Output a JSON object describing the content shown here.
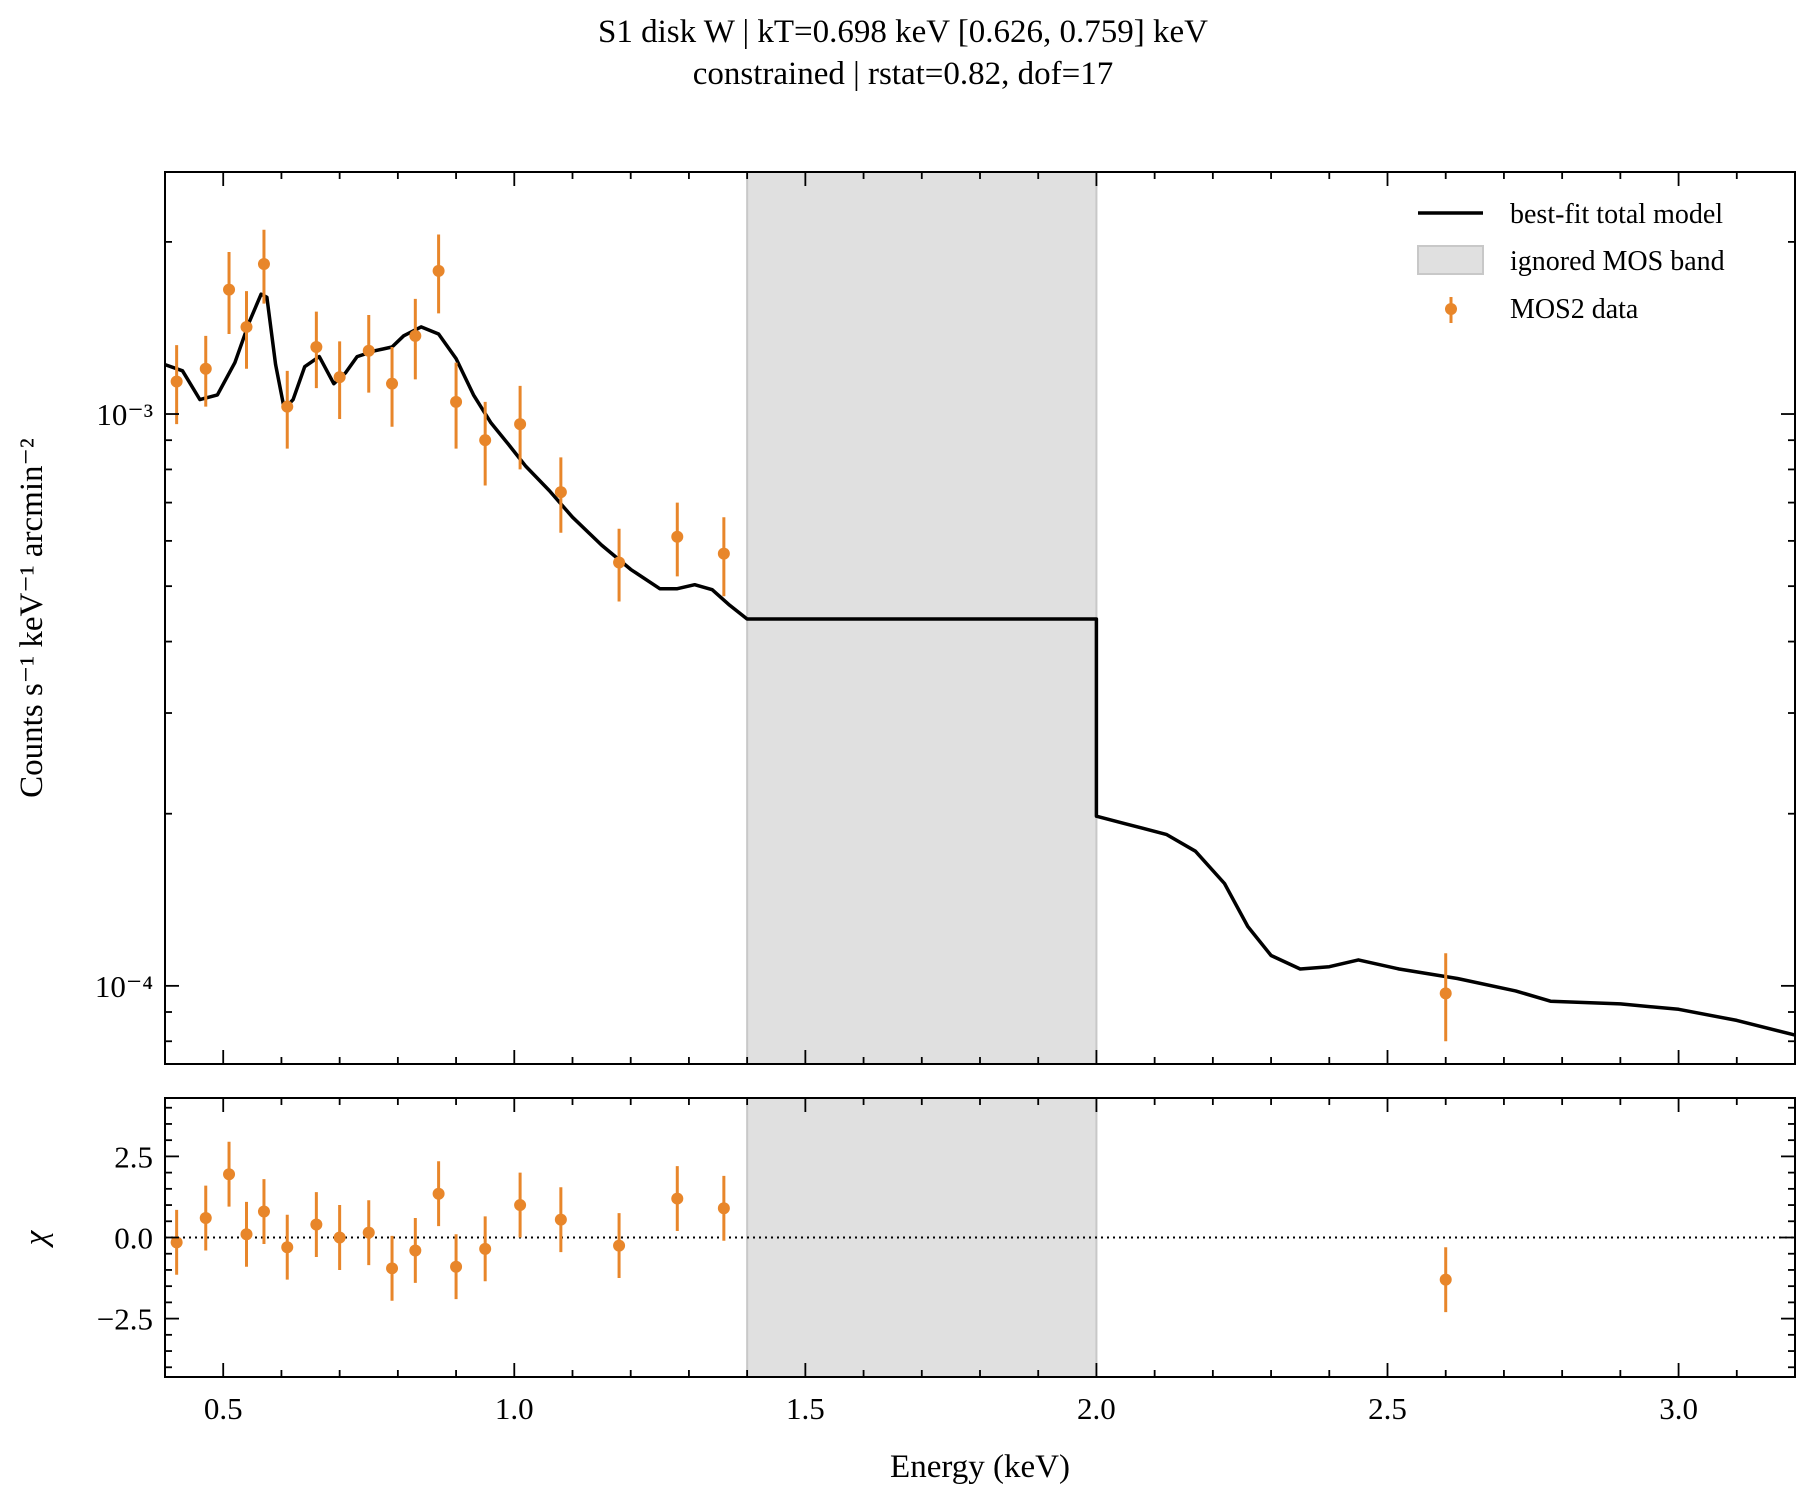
{
  "title": {
    "line1": "S1 disk W | kT=0.698 keV [0.626, 0.759] keV",
    "line2": "constrained | rstat=0.82, dof=17"
  },
  "chart_data": [
    {
      "type": "line",
      "panel": "spectrum",
      "xlabel": "Energy (keV)",
      "ylabel": "Counts s⁻¹ keV⁻¹ arcmin⁻²",
      "yscale": "log",
      "xlim": [
        0.4,
        3.2
      ],
      "ylim": [
        7.3e-05,
        0.00265
      ],
      "ytick_labels": [
        "10⁻³",
        "10⁻⁴"
      ],
      "grid": false,
      "legend_position": "top-right",
      "legend": [
        "best-fit total model",
        "ignored MOS band",
        "MOS2 data"
      ],
      "colors": {
        "model": "#000000",
        "data": "#e8862a",
        "band": "#e0e0e0"
      },
      "ignored_band": [
        1.4,
        2.0
      ],
      "series": [
        {
          "name": "best-fit total model",
          "x": [
            0.4,
            0.43,
            0.46,
            0.49,
            0.52,
            0.545,
            0.565,
            0.575,
            0.59,
            0.605,
            0.62,
            0.64,
            0.665,
            0.69,
            0.71,
            0.73,
            0.76,
            0.79,
            0.81,
            0.84,
            0.87,
            0.9,
            0.93,
            0.96,
            0.99,
            1.02,
            1.06,
            1.1,
            1.15,
            1.2,
            1.25,
            1.28,
            1.31,
            1.34,
            1.37,
            1.4,
            1.45,
            1.7,
            2.0,
            2.0,
            2.05,
            2.12,
            2.17,
            2.22,
            2.26,
            2.3,
            2.35,
            2.4,
            2.45,
            2.52,
            2.62,
            2.72,
            2.78,
            2.9,
            3.0,
            3.1,
            3.2
          ],
          "y": [
            0.00122,
            0.00119,
            0.00106,
            0.00108,
            0.00123,
            0.00145,
            0.00162,
            0.0016,
            0.00122,
            0.00102,
            0.00106,
            0.00121,
            0.00126,
            0.00113,
            0.00118,
            0.00126,
            0.00129,
            0.00131,
            0.00137,
            0.00142,
            0.00138,
            0.00125,
            0.00108,
            0.000965,
            0.000885,
            0.00081,
            0.000735,
            0.00066,
            0.00059,
            0.000535,
            0.000495,
            0.000495,
            0.000503,
            0.000493,
            0.000463,
            0.000438,
            0.000438,
            0.000438,
            0.000438,
            0.000198,
            0.000192,
            0.000184,
            0.000172,
            0.000151,
            0.000127,
            0.000113,
            0.000107,
            0.000108,
            0.000111,
            0.000107,
            0.000103,
            9.8e-05,
            9.4e-05,
            9.3e-05,
            9.1e-05,
            8.7e-05,
            8.2e-05
          ]
        },
        {
          "name": "MOS2 data",
          "x": [
            0.42,
            0.47,
            0.51,
            0.54,
            0.57,
            0.61,
            0.66,
            0.7,
            0.75,
            0.79,
            0.83,
            0.87,
            0.9,
            0.95,
            1.01,
            1.08,
            1.18,
            1.28,
            1.36,
            2.6
          ],
          "y": [
            0.00114,
            0.0012,
            0.00165,
            0.00142,
            0.00183,
            0.00103,
            0.00131,
            0.00116,
            0.00129,
            0.00113,
            0.00137,
            0.00178,
            0.00105,
            0.0009,
            0.00096,
            0.00073,
            0.00055,
            0.00061,
            0.00057,
            9.7e-05
          ],
          "yerr": [
            0.00018,
            0.00017,
            0.00027,
            0.00022,
            0.00027,
            0.00016,
            0.0002,
            0.00018,
            0.0002,
            0.00018,
            0.00022,
            0.00028,
            0.00018,
            0.00015,
            0.00016,
            0.00011,
            8e-05,
            9e-05,
            9e-05,
            1.7e-05
          ]
        }
      ]
    },
    {
      "type": "scatter",
      "panel": "residuals",
      "xlabel": "Energy (keV)",
      "ylabel": "χ",
      "xlim": [
        0.4,
        3.2
      ],
      "ylim": [
        -4.3,
        4.3
      ],
      "yticks": [
        -2.5,
        0.0,
        2.5
      ],
      "ytick_labels": [
        "−2.5",
        "0.0",
        "2.5"
      ],
      "xticks": [
        0.5,
        1.0,
        1.5,
        2.0,
        2.5,
        3.0
      ],
      "xtick_labels": [
        "0.5",
        "1.0",
        "1.5",
        "2.0",
        "2.5",
        "3.0"
      ],
      "reference_line": 0,
      "ignored_band": [
        1.4,
        2.0
      ],
      "series": [
        {
          "name": "MOS2 data",
          "x": [
            0.42,
            0.47,
            0.51,
            0.54,
            0.57,
            0.61,
            0.66,
            0.7,
            0.75,
            0.79,
            0.83,
            0.87,
            0.9,
            0.95,
            1.01,
            1.08,
            1.18,
            1.28,
            1.36,
            2.6
          ],
          "y": [
            -0.15,
            0.6,
            1.95,
            0.1,
            0.8,
            -0.3,
            0.4,
            0.0,
            0.15,
            -0.95,
            -0.4,
            1.35,
            -0.9,
            -0.35,
            1.0,
            0.55,
            -0.25,
            1.2,
            0.9,
            -1.3
          ],
          "yerr": [
            1.0,
            1.0,
            1.0,
            1.0,
            1.0,
            1.0,
            1.0,
            1.0,
            1.0,
            1.0,
            1.0,
            1.0,
            1.0,
            1.0,
            1.0,
            1.0,
            1.0,
            1.0,
            1.0,
            1.0
          ]
        }
      ]
    }
  ]
}
